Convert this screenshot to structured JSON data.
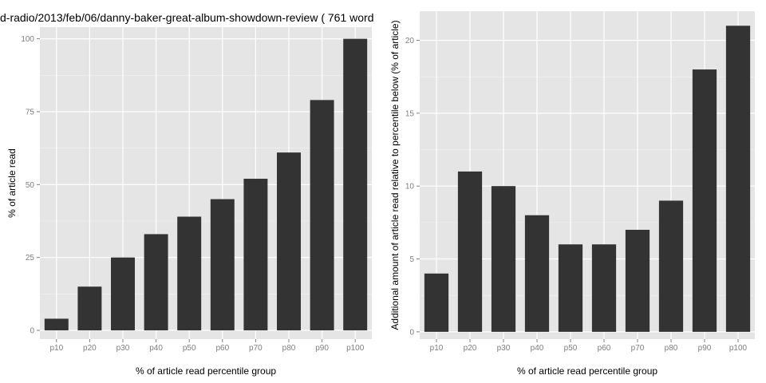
{
  "page": {
    "title": "d-radio/2013/feb/06/danny-baker-great-album-showdown-review ( 761 word"
  },
  "chart_data": [
    {
      "type": "bar",
      "title": "",
      "xlabel": "% of article read percentile group",
      "ylabel": "% of article read",
      "categories": [
        "p10",
        "p20",
        "p30",
        "p40",
        "p50",
        "p60",
        "p70",
        "p80",
        "p90",
        "p100"
      ],
      "values": [
        4,
        15,
        25,
        33,
        39,
        45,
        52,
        61,
        79,
        100
      ],
      "ylim": [
        -3,
        104
      ],
      "yticks": [
        0,
        25,
        50,
        75,
        100
      ],
      "grid": true,
      "colors": {
        "bar": "#333333",
        "panel": "#e5e5e5",
        "grid": "#ffffff",
        "grid_minor": "#f2f2f2"
      }
    },
    {
      "type": "bar",
      "title": "",
      "xlabel": "% of article read percentile group",
      "ylabel": "Additional amount of article read relative to percentile below (% of article)",
      "categories": [
        "p10",
        "p20",
        "p30",
        "p40",
        "p50",
        "p60",
        "p70",
        "p80",
        "p90",
        "p100"
      ],
      "values": [
        4,
        11,
        10,
        8,
        6,
        6,
        7,
        9,
        18,
        21
      ],
      "ylim": [
        -0.5,
        22
      ],
      "yticks": [
        0,
        5,
        10,
        15,
        20
      ],
      "grid": true,
      "colors": {
        "bar": "#333333",
        "panel": "#e5e5e5",
        "grid": "#ffffff",
        "grid_minor": "#f2f2f2"
      }
    }
  ]
}
